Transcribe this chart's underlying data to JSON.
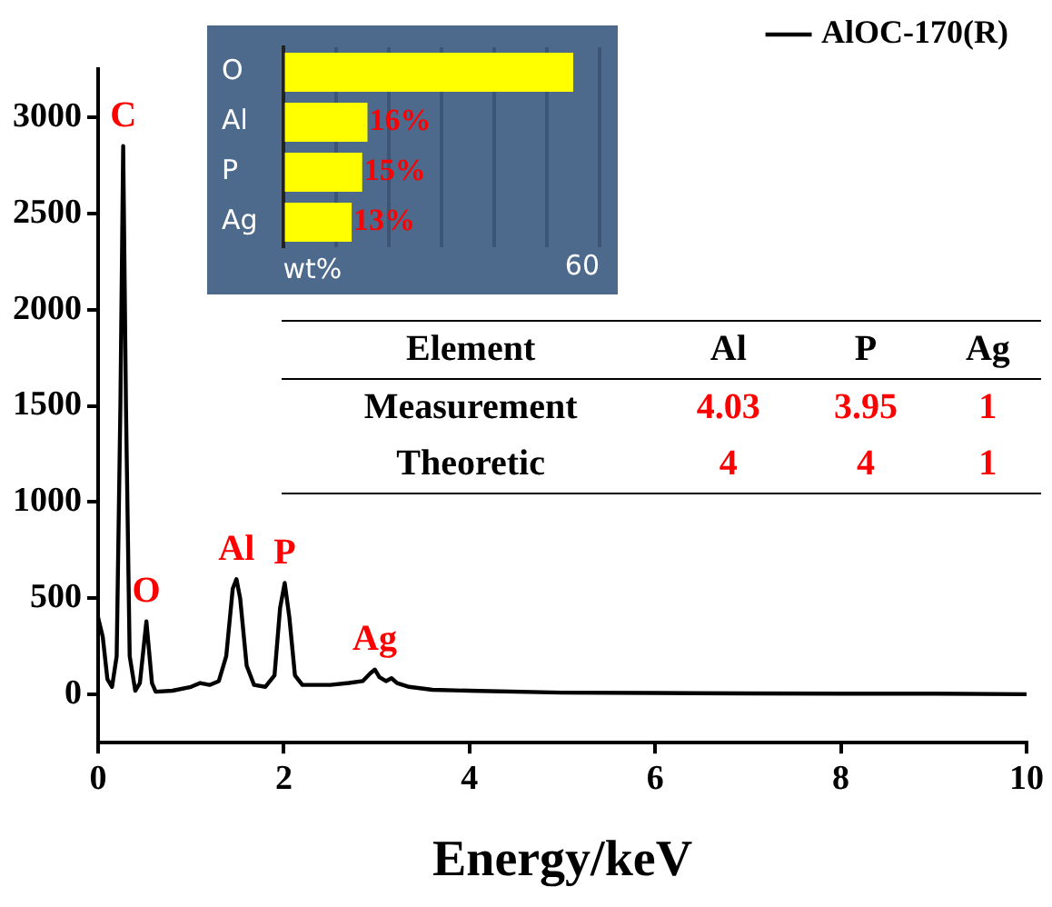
{
  "chart_data": [
    {
      "type": "line",
      "xlabel": "Energy/keV",
      "xlim": [
        0,
        10
      ],
      "xticks": [
        0,
        2,
        4,
        6,
        8,
        10
      ],
      "ylim": [
        -250,
        3250
      ],
      "yticks": [
        0,
        500,
        1000,
        1500,
        2000,
        2500,
        3000
      ],
      "grid": false,
      "legend": "top right",
      "marker": "none",
      "line_style": "solid",
      "series": [
        {
          "name": "AlOC-170(R)",
          "color": "#000000",
          "x": [
            0,
            0.05,
            0.1,
            0.15,
            0.2,
            0.24,
            0.27,
            0.3,
            0.34,
            0.4,
            0.45,
            0.52,
            0.58,
            0.62,
            0.8,
            1.0,
            1.1,
            1.2,
            1.3,
            1.38,
            1.45,
            1.49,
            1.53,
            1.6,
            1.68,
            1.8,
            1.9,
            1.96,
            2.01,
            2.06,
            2.12,
            2.2,
            2.5,
            2.7,
            2.85,
            2.93,
            2.98,
            3.03,
            3.1,
            3.16,
            3.22,
            3.35,
            3.6,
            4,
            5,
            6,
            7,
            8,
            9,
            10
          ],
          "values": [
            400,
            300,
            80,
            40,
            200,
            1500,
            2850,
            1500,
            200,
            20,
            60,
            380,
            60,
            15,
            20,
            40,
            60,
            50,
            70,
            200,
            550,
            600,
            500,
            150,
            50,
            40,
            100,
            450,
            580,
            400,
            100,
            50,
            50,
            60,
            70,
            110,
            130,
            90,
            70,
            85,
            60,
            40,
            25,
            20,
            10,
            8,
            6,
            5,
            5,
            2
          ]
        }
      ],
      "annotations": [
        {
          "text": "C",
          "x": 0.27,
          "y": 2850
        },
        {
          "text": "O",
          "x": 0.52,
          "y": 380
        },
        {
          "text": "Al",
          "x": 1.49,
          "y": 600
        },
        {
          "text": "P",
          "x": 2.01,
          "y": 580
        },
        {
          "text": "Ag",
          "x": 2.98,
          "y": 130
        },
        "Element",
        "Al",
        "P",
        "Ag",
        "Measurement",
        "4.03",
        "3.95",
        "1",
        "Theoretic",
        "4",
        "4",
        "1"
      ]
    },
    {
      "type": "bar",
      "orientation": "horizontal",
      "categories": [
        "O",
        "Al",
        "P",
        "Ag"
      ],
      "values": [
        55,
        16,
        15,
        13
      ],
      "value_labels": [
        null,
        "16%",
        "15%",
        "13%"
      ],
      "color": "#ffff00",
      "xlabel": "wt%",
      "xlim": [
        0,
        60
      ],
      "xticks": [
        {
          "value": 0,
          "label": null
        },
        {
          "value": 10,
          "label": null
        },
        {
          "value": 20,
          "label": null
        },
        {
          "value": 30,
          "label": null
        },
        {
          "value": 40,
          "label": null
        },
        {
          "value": 50,
          "label": null
        },
        60
      ],
      "grid": "x"
    }
  ]
}
